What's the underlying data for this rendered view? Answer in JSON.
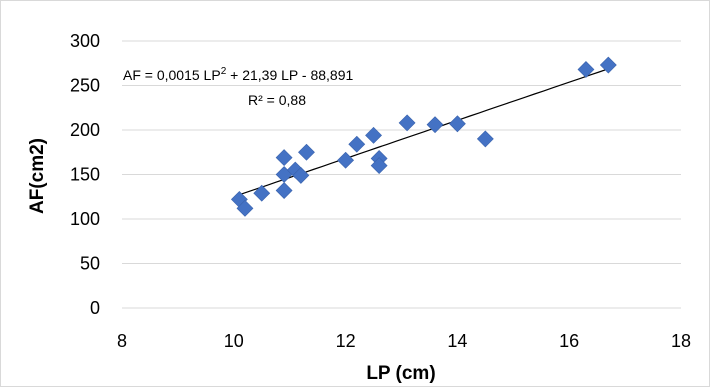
{
  "chart_data": {
    "type": "scatter",
    "xlabel": "LP (cm)",
    "ylabel": "AF(cm2)",
    "xlim": [
      8,
      18
    ],
    "ylim": [
      0,
      300
    ],
    "x_ticks": [
      "8",
      "10",
      "12",
      "14",
      "16",
      "18"
    ],
    "y_ticks": [
      "0",
      "50",
      "100",
      "150",
      "200",
      "250",
      "300"
    ],
    "grid": "horizontal",
    "legend": "none",
    "marker": "diamond",
    "marker_color": "#4472C4",
    "trendline_color": "#000000",
    "series": [
      {
        "points": [
          [
            10.1,
            122
          ],
          [
            10.2,
            112
          ],
          [
            10.5,
            129
          ],
          [
            10.9,
            132
          ],
          [
            10.9,
            150
          ],
          [
            10.9,
            169
          ],
          [
            11.1,
            155
          ],
          [
            11.2,
            149
          ],
          [
            11.3,
            175
          ],
          [
            12.0,
            166
          ],
          [
            12.2,
            184
          ],
          [
            12.5,
            194
          ],
          [
            12.6,
            168
          ],
          [
            12.6,
            160
          ],
          [
            13.1,
            208
          ],
          [
            13.6,
            206
          ],
          [
            14.0,
            207
          ],
          [
            14.5,
            190
          ],
          [
            16.3,
            268
          ],
          [
            16.7,
            273
          ]
        ]
      }
    ],
    "trendline": {
      "x_range": [
        10.1,
        16.7
      ],
      "equation_prefix": "AF = 0,0015 LP",
      "equation_sup": "2",
      "equation_suffix": " + 21,39 LP - 88,891",
      "r2": "R² = 0,88"
    }
  }
}
